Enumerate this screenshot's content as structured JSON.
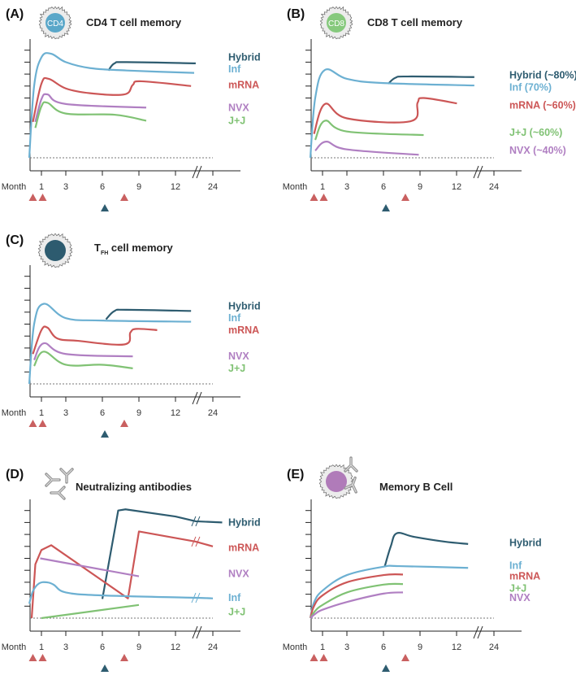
{
  "axis": {
    "x_label": "Month",
    "x_ticks": [
      "1",
      "3",
      "6",
      "9",
      "12",
      "24"
    ],
    "x_tick_months": [
      1,
      3,
      6,
      9,
      12,
      24
    ],
    "axis_break_after_month": 12
  },
  "colors": {
    "Hybrid": "#2e5c70",
    "Inf": "#6cb0d2",
    "mRNA": "#cc5656",
    "NVX": "#b07fc2",
    "J+J": "#80c274",
    "dose_red": "#c96060",
    "dose_blue": "#2e5c70"
  },
  "doses": [
    {
      "month": 0.3,
      "color": "red"
    },
    {
      "month": 1.1,
      "color": "red"
    },
    {
      "month": 7.8,
      "color": "red"
    },
    {
      "month": 6.2,
      "color": "blue"
    }
  ],
  "chart_data": [
    {
      "panel": "(A)",
      "type": "line",
      "title": "CD4 T cell memory",
      "icon": "cd4-cell-icon",
      "icon_text": "CD4",
      "xlabel": "Month",
      "ylabel": "",
      "grid": false,
      "legend": "right",
      "series": [
        {
          "name": "Hybrid",
          "label": "Hybrid",
          "points": [
            [
              6.5,
              7.3
            ],
            [
              7,
              7.9
            ],
            [
              8,
              8.0
            ],
            [
              18.5,
              7.9
            ]
          ],
          "label_level": 8.4
        },
        {
          "name": "Inf",
          "label": "Inf",
          "points": [
            [
              0,
              0
            ],
            [
              0.4,
              6
            ],
            [
              1,
              8.4
            ],
            [
              1.8,
              8.7
            ],
            [
              3,
              8.0
            ],
            [
              5,
              7.5
            ],
            [
              8,
              7.3
            ],
            [
              18,
              7.1
            ]
          ],
          "label_level": 7.4
        },
        {
          "name": "mRNA",
          "label": "mRNA",
          "points": [
            [
              0.3,
              3
            ],
            [
              1,
              6.2
            ],
            [
              1.6,
              6.6
            ],
            [
              3,
              5.8
            ],
            [
              5,
              5.4
            ],
            [
              7.8,
              5.3
            ],
            [
              8.5,
              6.1
            ],
            [
              9.2,
              6.4
            ],
            [
              17,
              6.0
            ]
          ],
          "label_level": 6.1
        },
        {
          "name": "NVX",
          "label": "NVX",
          "points": [
            [
              0.5,
              3
            ],
            [
              1,
              4.9
            ],
            [
              1.5,
              5.3
            ],
            [
              3,
              4.5
            ],
            [
              9.6,
              4.2
            ]
          ],
          "label_level": 4.2
        },
        {
          "name": "J+J",
          "label": "J+J",
          "points": [
            [
              0.5,
              2.5
            ],
            [
              1,
              4.3
            ],
            [
              1.5,
              4.6
            ],
            [
              3,
              3.7
            ],
            [
              7,
              3.6
            ],
            [
              9.6,
              3.1
            ]
          ],
          "label_level": 3.1
        }
      ]
    },
    {
      "panel": "(B)",
      "type": "line",
      "title": "CD8 T cell memory",
      "icon": "cd8-cell-icon",
      "icon_text": "CD8",
      "xlabel": "Month",
      "ylabel": "",
      "grid": false,
      "legend": "right",
      "series": [
        {
          "name": "Hybrid",
          "label": "Hybrid (~80%)",
          "points": [
            [
              6.4,
              6.2
            ],
            [
              7,
              6.7
            ],
            [
              8,
              6.8
            ],
            [
              17.7,
              6.75
            ]
          ],
          "label_level": 6.9
        },
        {
          "name": "Inf",
          "label": "Inf (70%)",
          "points": [
            [
              0,
              0
            ],
            [
              0.4,
              5
            ],
            [
              1.2,
              7.35
            ],
            [
              3,
              6.6
            ],
            [
              6,
              6.25
            ],
            [
              17.7,
              6.05
            ]
          ],
          "label_level": 5.9
        },
        {
          "name": "mRNA",
          "label": "mRNA (~60%)",
          "points": [
            [
              0.3,
              2
            ],
            [
              1.2,
              4.5
            ],
            [
              3,
              3.3
            ],
            [
              8.2,
              3.05
            ],
            [
              8.8,
              4.6
            ],
            [
              9.3,
              5.0
            ],
            [
              12.1,
              4.55
            ]
          ],
          "label_level": 4.4
        },
        {
          "name": "J+J",
          "label": "J+J (~60%)",
          "points": [
            [
              0.4,
              1.5
            ],
            [
              1.2,
              3.1
            ],
            [
              3,
              2.2
            ],
            [
              9.3,
              1.9
            ]
          ],
          "label_level": 2.1
        },
        {
          "name": "NVX",
          "label": "NVX (~40%)",
          "points": [
            [
              0.4,
              0.6
            ],
            [
              1.3,
              1.35
            ],
            [
              3,
              0.7
            ],
            [
              8.9,
              0.25
            ]
          ],
          "label_level": 0.6
        }
      ]
    },
    {
      "panel": "(C)",
      "type": "line",
      "title": "T",
      "title_sub": "FH",
      "title_rest": " cell memory",
      "icon": "tfh-cell-icon",
      "icon_text": "",
      "xlabel": "Month",
      "ylabel": "",
      "grid": false,
      "legend": "right",
      "series": [
        {
          "name": "Hybrid",
          "label": "Hybrid",
          "points": [
            [
              6.3,
              5.4
            ],
            [
              7,
              6.1
            ],
            [
              8,
              6.2
            ],
            [
              17,
              6.1
            ]
          ],
          "label_level": 6.5
        },
        {
          "name": "Inf",
          "label": "Inf",
          "points": [
            [
              0,
              0
            ],
            [
              0.4,
              5
            ],
            [
              1.2,
              6.7
            ],
            [
              3,
              5.5
            ],
            [
              6,
              5.3
            ],
            [
              17,
              5.2
            ]
          ],
          "label_level": 5.5
        },
        {
          "name": "mRNA",
          "label": "mRNA",
          "points": [
            [
              0.3,
              2.5
            ],
            [
              1,
              4.5
            ],
            [
              1.5,
              4.7
            ],
            [
              2.3,
              3.8
            ],
            [
              4,
              3.6
            ],
            [
              7.8,
              3.3
            ],
            [
              8.3,
              4.3
            ],
            [
              8.8,
              4.6
            ],
            [
              10.5,
              4.5
            ]
          ],
          "label_level": 4.5
        },
        {
          "name": "NVX",
          "label": "NVX",
          "points": [
            [
              0.4,
              2
            ],
            [
              1.2,
              3.4
            ],
            [
              3,
              2.5
            ],
            [
              8.5,
              2.3
            ]
          ],
          "label_level": 2.3
        },
        {
          "name": "J+J",
          "label": "J+J",
          "points": [
            [
              0.4,
              1.5
            ],
            [
              1.2,
              2.7
            ],
            [
              3,
              1.6
            ],
            [
              6,
              1.6
            ],
            [
              8.5,
              1.3
            ]
          ],
          "label_level": 1.3
        }
      ]
    },
    {
      "panel": "(D)",
      "type": "line",
      "title": "Neutralizing antibodies",
      "icon": "antibody-icon",
      "icon_text": "",
      "xlabel": "Month",
      "ylabel": "",
      "grid": false,
      "legend": "right",
      "series": [
        {
          "name": "Hybrid",
          "label": "Hybrid",
          "points": [
            [
              6,
              1.6
            ],
            [
              7.3,
              9.0
            ],
            [
              7.9,
              9.1
            ],
            [
              12,
              8.5
            ],
            [
              18.5,
              8.1
            ],
            [
              27,
              8.0
            ]
          ],
          "label_level": 8.0,
          "break_month": 18.5
        },
        {
          "name": "mRNA",
          "label": "mRNA",
          "points": [
            [
              0.2,
              0
            ],
            [
              0.5,
              4.5
            ],
            [
              1,
              5.7
            ],
            [
              1.8,
              6.1
            ],
            [
              8.1,
              1.65
            ],
            [
              9,
              7.25
            ],
            [
              18.5,
              6.4
            ],
            [
              24,
              6.0
            ]
          ],
          "label_level": 5.9,
          "break_month": 18.5
        },
        {
          "name": "NVX",
          "label": "NVX",
          "points": [
            [
              0.9,
              5.0
            ],
            [
              9,
              3.5
            ]
          ],
          "label_level": 3.7
        },
        {
          "name": "Inf",
          "label": "Inf",
          "points": [
            [
              0,
              1.2
            ],
            [
              0.3,
              2.25
            ],
            [
              0.8,
              2.9
            ],
            [
              1.4,
              3.0
            ],
            [
              2,
              2.8
            ],
            [
              3,
              2.15
            ],
            [
              6,
              1.9
            ],
            [
              18.5,
              1.7
            ],
            [
              24,
              1.65
            ]
          ],
          "label_level": 1.7,
          "break_month": 18.5
        },
        {
          "name": "J+J",
          "label": "J+J",
          "points": [
            [
              1,
              0
            ],
            [
              9,
              1.1
            ]
          ],
          "label_level": 0.5
        }
      ]
    },
    {
      "panel": "(E)",
      "type": "line",
      "title": "Memory B Cell",
      "icon": "memory-b-cell-icon",
      "icon_text": "",
      "xlabel": "Month",
      "ylabel": "",
      "grid": false,
      "legend": "right",
      "series": [
        {
          "name": "Hybrid",
          "label": "Hybrid",
          "points": [
            [
              6.1,
              4.3
            ],
            [
              6.6,
              6.0
            ],
            [
              7.1,
              7.1
            ],
            [
              8.5,
              6.8
            ],
            [
              11,
              6.4
            ],
            [
              15.7,
              6.2
            ]
          ],
          "label_level": 6.3
        },
        {
          "name": "Inf",
          "label": "Inf",
          "points": [
            [
              0,
              0
            ],
            [
              0.3,
              1.3
            ],
            [
              1,
              2.3
            ],
            [
              3,
              3.6
            ],
            [
              6,
              4.3
            ],
            [
              7.3,
              4.35
            ],
            [
              15.7,
              4.2
            ]
          ],
          "label_level": 4.4
        },
        {
          "name": "mRNA",
          "label": "mRNA",
          "points": [
            [
              0,
              0
            ],
            [
              0.3,
              1.0
            ],
            [
              1,
              1.9
            ],
            [
              3,
              3.0
            ],
            [
              6,
              3.6
            ],
            [
              7.6,
              3.65
            ]
          ],
          "label_level": 3.5
        },
        {
          "name": "J+J",
          "label": "J+J",
          "points": [
            [
              0,
              0
            ],
            [
              0.4,
              0.6
            ],
            [
              1,
              1.1
            ],
            [
              3,
              2.15
            ],
            [
              6,
              2.8
            ],
            [
              7.6,
              2.85
            ]
          ],
          "label_level": 2.5
        },
        {
          "name": "NVX",
          "label": "NVX",
          "points": [
            [
              0,
              0
            ],
            [
              0.4,
              0.35
            ],
            [
              1,
              0.7
            ],
            [
              3,
              1.35
            ],
            [
              6,
              2.05
            ],
            [
              7.6,
              2.15
            ]
          ],
          "label_level": 1.7
        }
      ]
    }
  ]
}
